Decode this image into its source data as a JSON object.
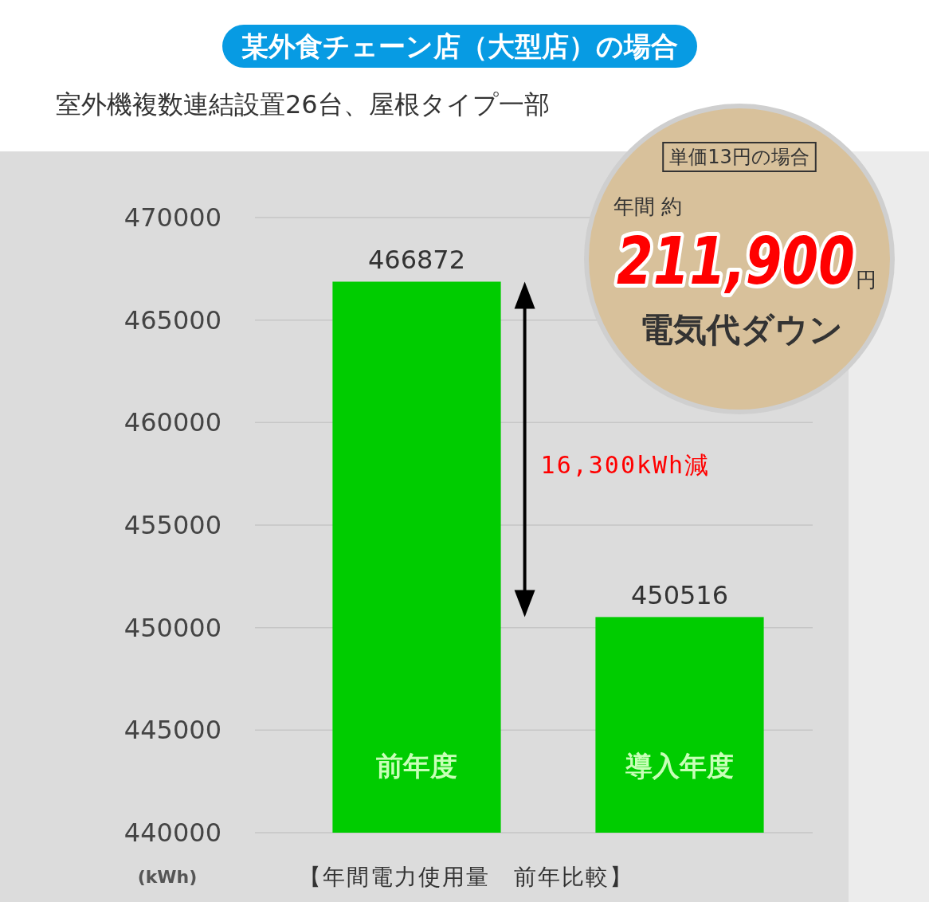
{
  "chart_data": {
    "type": "bar",
    "title": "某外食チェーン店（大型店）の場合",
    "subtitle": "室外機複数連結設置26台、屋根タイプ一部",
    "xlabel": "【年間電力使用量　前年比較】",
    "ylabel": "(kWh)",
    "categories": [
      "前年度",
      "導入年度"
    ],
    "values": [
      466872,
      450516
    ],
    "color": "#00cc00",
    "ylim": [
      440000,
      470000
    ],
    "yticks": [
      440000,
      445000,
      450000,
      455000,
      460000,
      465000,
      470000
    ],
    "grid": "y",
    "data_labels": true,
    "annotations": [
      "単価13円の場合",
      "年間 約",
      "211,900",
      "円",
      "電気代ダウン",
      "16,300kWh減"
    ]
  }
}
